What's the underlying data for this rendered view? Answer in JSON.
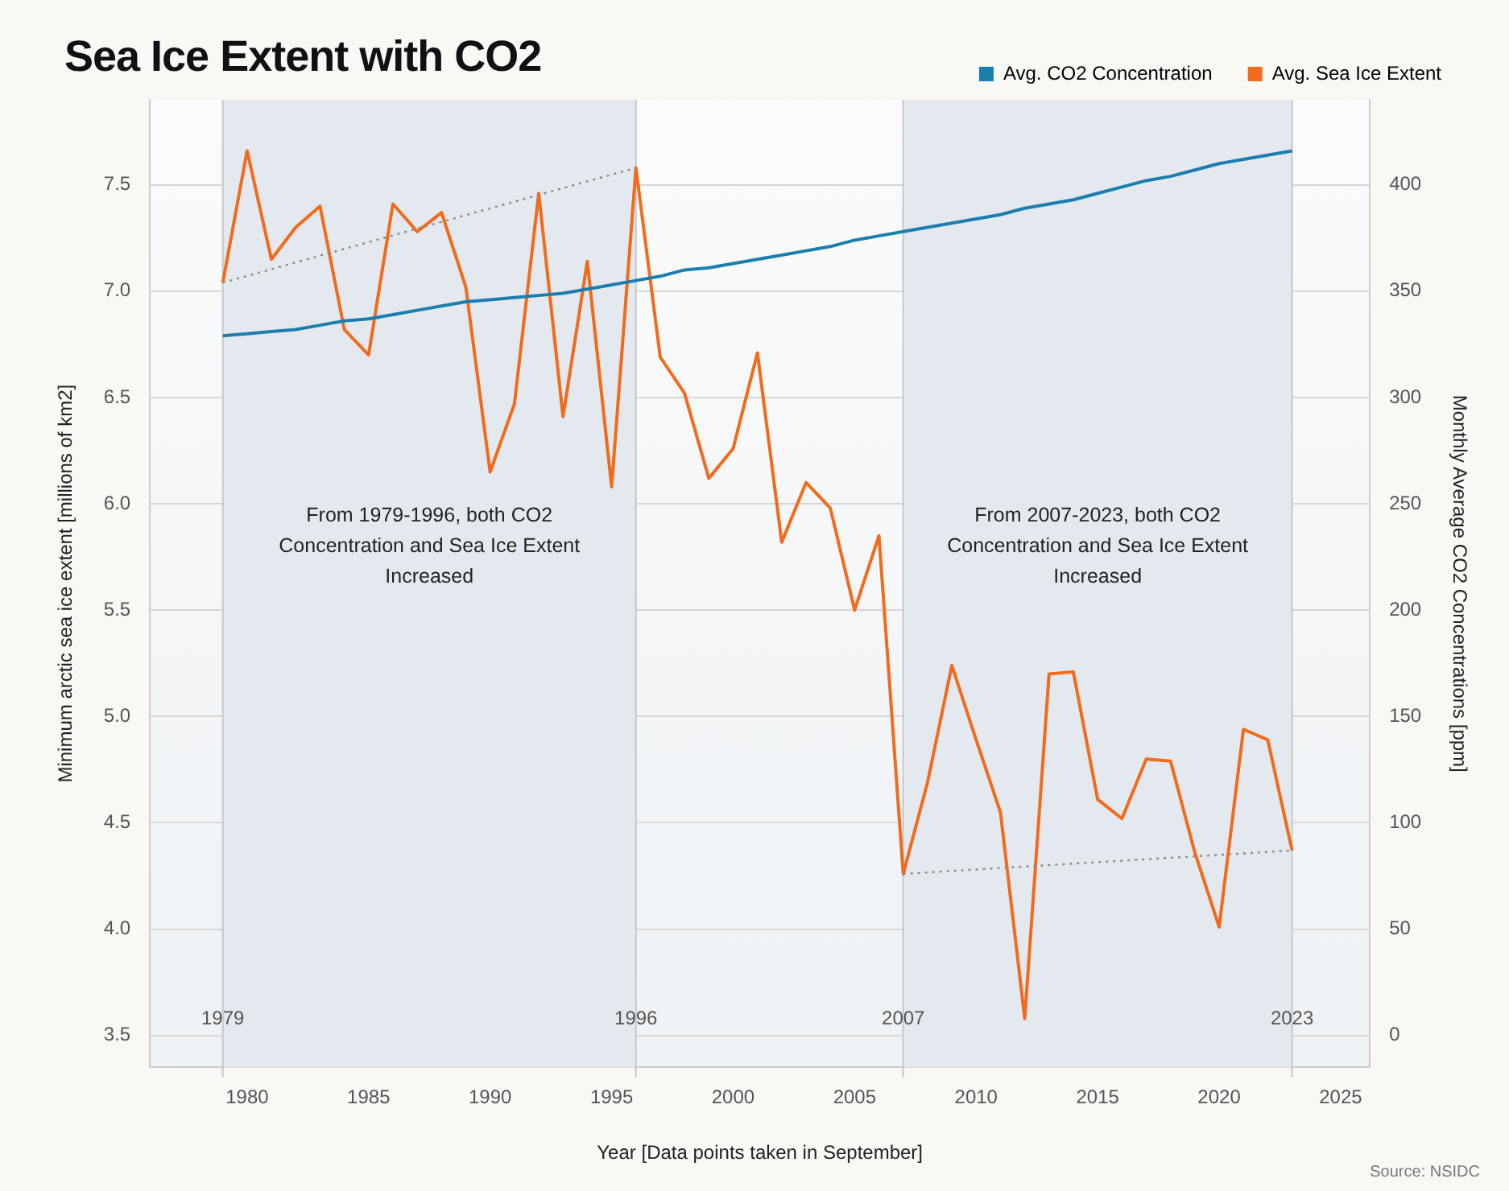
{
  "chart_data": {
    "type": "line",
    "title": "Sea Ice Extent with CO2",
    "xlabel": "Year [Data points taken in September]",
    "ylabel": "Minimum arctic sea ice extent [millions of km2]",
    "y2label": "Monthly Average CO2 Concentrations [ppm]",
    "x": [
      1979,
      1980,
      1981,
      1982,
      1983,
      1984,
      1985,
      1986,
      1987,
      1988,
      1989,
      1990,
      1991,
      1992,
      1993,
      1994,
      1995,
      1996,
      1997,
      1998,
      1999,
      2000,
      2001,
      2002,
      2003,
      2004,
      2005,
      2006,
      2007,
      2008,
      2009,
      2010,
      2011,
      2012,
      2013,
      2014,
      2015,
      2016,
      2017,
      2018,
      2019,
      2020,
      2021,
      2022,
      2023
    ],
    "series": [
      {
        "name": "Avg. CO2 Concentration",
        "color": "#1b7fad",
        "axis": "y2",
        "values": [
          329,
          330,
          331,
          332,
          334,
          336,
          337,
          339,
          341,
          343,
          345,
          346,
          347,
          348,
          349,
          351,
          353,
          355,
          357,
          360,
          361,
          363,
          365,
          367,
          369,
          371,
          374,
          376,
          378,
          380,
          382,
          384,
          386,
          389,
          391,
          393,
          396,
          399,
          402,
          404,
          407,
          410,
          412,
          414,
          416
        ]
      },
      {
        "name": "Avg. Sea Ice Extent",
        "color": "#f26b1d",
        "values": [
          7.04,
          7.66,
          7.15,
          7.3,
          7.4,
          6.82,
          6.7,
          7.41,
          7.28,
          7.37,
          7.02,
          6.15,
          6.47,
          7.46,
          6.41,
          7.14,
          6.08,
          7.58,
          6.69,
          6.52,
          6.12,
          6.26,
          6.71,
          5.82,
          6.1,
          5.98,
          5.5,
          5.85,
          4.26,
          4.69,
          5.24,
          4.89,
          4.55,
          3.58,
          5.2,
          5.21,
          4.61,
          4.52,
          4.8,
          4.79,
          4.36,
          4.01,
          4.94,
          4.89,
          4.37
        ]
      },
      {
        "color": "#8a8a8a",
        "line_style": "dotted",
        "x": [
          1979,
          1996
        ],
        "values": [
          7.04,
          7.58
        ]
      },
      {
        "color": "#8a8a8a",
        "line_style": "dotted",
        "x": [
          2007,
          2023
        ],
        "values": [
          4.26,
          4.37
        ]
      }
    ],
    "xlim": [
      1976,
      2026.2
    ],
    "xticks": [
      1980,
      1985,
      1990,
      1995,
      2000,
      2005,
      2010,
      2015,
      2020,
      2025
    ],
    "ylim": [
      3.35,
      7.9
    ],
    "yticks": [
      3.5,
      {
        "value": 4,
        "label": "4.0"
      },
      4.5,
      {
        "value": 5,
        "label": "5.0"
      },
      5.5,
      {
        "value": 6,
        "label": "6.0"
      },
      6.5,
      {
        "value": 7,
        "label": "7.0"
      },
      7.5
    ],
    "y2lim": [
      -15,
      440
    ],
    "y2ticks": [
      0,
      50,
      100,
      150,
      200,
      250,
      300,
      350,
      400
    ],
    "bands": [
      {
        "axis": "x",
        "from": 1979,
        "to": 1996,
        "color": "#e4e9ef"
      },
      {
        "axis": "x",
        "from": 2007,
        "to": 2023,
        "color": "#e4e9ef"
      }
    ],
    "ref_lines": [
      {
        "axis": "x",
        "value": 1979,
        "label": "1979"
      },
      {
        "axis": "x",
        "value": 1996,
        "label": "1996"
      },
      {
        "axis": "x",
        "value": 2007,
        "label": "2007"
      },
      {
        "axis": "x",
        "value": 2023,
        "label": "2023"
      }
    ],
    "annotations": [
      "From 1979-1996, both CO2 Concentration and Sea Ice Extent Increased",
      "From 2007-2023, both CO2 Concentration and Sea Ice Extent Increased",
      "Source: NSIDC"
    ],
    "grid": "y",
    "legend": "top right",
    "marker": "none"
  }
}
